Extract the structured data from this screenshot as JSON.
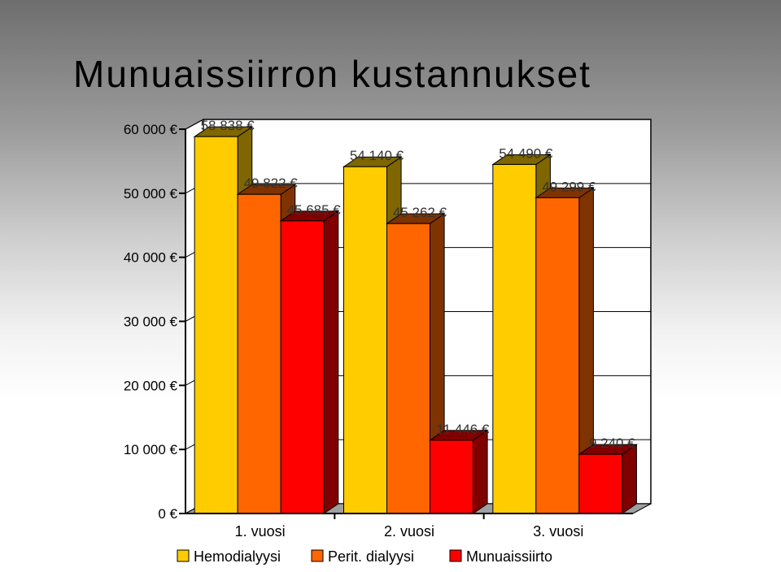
{
  "chart_data": {
    "type": "bar",
    "title": "Munuaissiirron kustannukset",
    "categories": [
      "1. vuosi",
      "2. vuosi",
      "3. vuosi"
    ],
    "series": [
      {
        "name": "Hemodialyysi",
        "color": "#FFCC00",
        "side_color": "#7F6600",
        "values": [
          58838,
          54140,
          54490
        ],
        "labels": [
          "58 838 €",
          "54 140 €",
          "54 490 €"
        ]
      },
      {
        "name": "Perit. dialyysi",
        "color": "#FF6600",
        "side_color": "#7F3300",
        "values": [
          49822,
          45262,
          49299
        ],
        "labels": [
          "49 822 €",
          "45 262 €",
          "49 299 €"
        ]
      },
      {
        "name": "Munuaissiirto",
        "color": "#FF0000",
        "side_color": "#800000",
        "values": [
          45685,
          11446,
          9240
        ],
        "labels": [
          "45 685 €",
          "11 446 €",
          "9 240 €"
        ]
      }
    ],
    "ylim": [
      0,
      60000
    ],
    "yticks": [
      0,
      10000,
      20000,
      30000,
      40000,
      50000,
      60000
    ],
    "ytick_labels": [
      "0 €",
      "10 000 €",
      "20 000 €",
      "30 000 €",
      "40 000 €",
      "50 000 €",
      "60 000 €"
    ],
    "grid": true,
    "legend": "bottom"
  }
}
